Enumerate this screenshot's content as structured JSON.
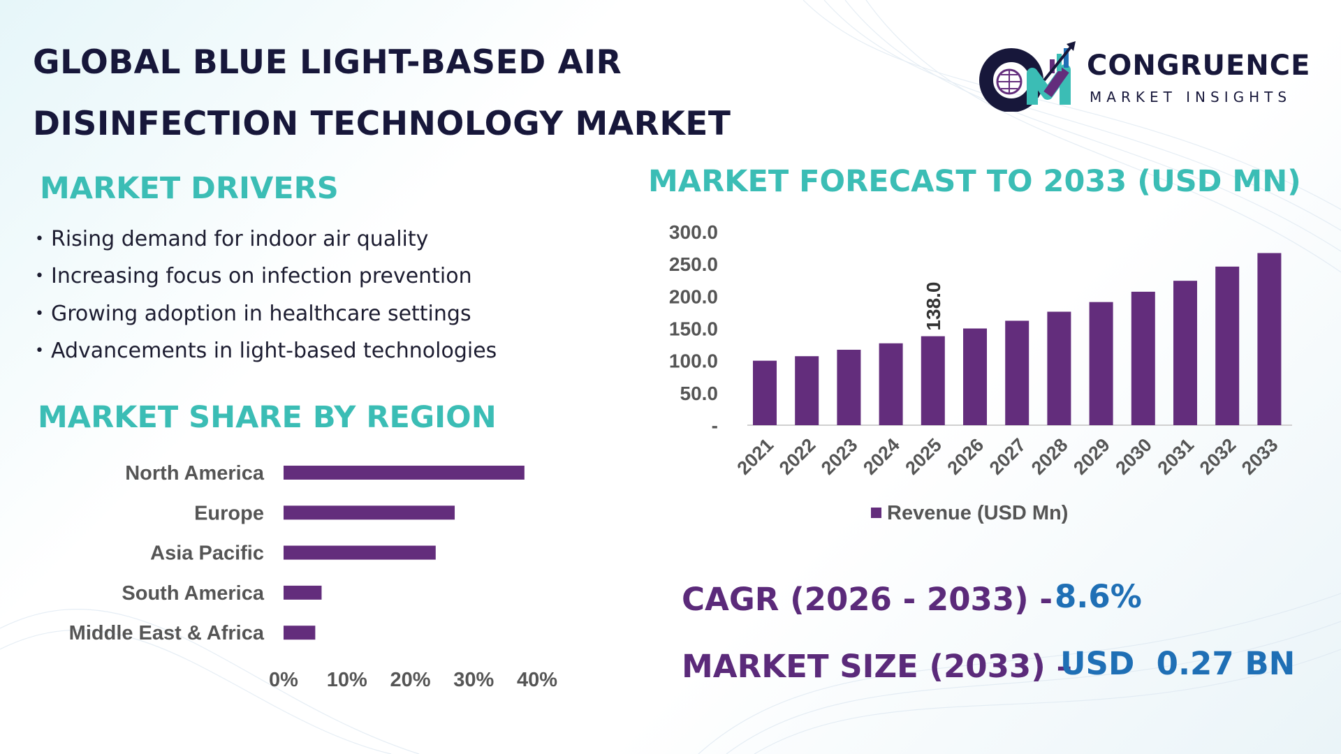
{
  "title": {
    "line1": "GLOBAL BLUE LIGHT-BASED AIR",
    "line2": "DISINFECTION TECHNOLOGY MARKET"
  },
  "logo": {
    "name": "CONGRUENCE",
    "tagline": "MARKET INSIGHTS",
    "monogram": "CM"
  },
  "drivers": {
    "heading": "MARKET DRIVERS",
    "items": [
      "Rising demand for indoor air quality",
      "Increasing focus on infection prevention",
      "Growing adoption in healthcare settings",
      "Advancements in light-based technologies"
    ]
  },
  "region": {
    "heading": "MARKET SHARE BY REGION"
  },
  "forecast": {
    "heading": "MARKET FORECAST TO 2033 (USD MN)"
  },
  "stats": {
    "cagr_label": "CAGR (2026 - 2033) -",
    "cagr_value": "8.6%",
    "size_label": "MARKET SIZE (2033) –",
    "size_value": "USD  0.27 BN"
  },
  "colors": {
    "bar": "#632d7c",
    "teal": "#3bbdb5",
    "purple_text": "#5b2a7a",
    "blue_text": "#1f6fb5"
  },
  "chart_data": [
    {
      "type": "bar",
      "orientation": "horizontal",
      "categories": [
        "North America",
        "Europe",
        "Asia Pacific",
        "South America",
        "Middle East & Africa"
      ],
      "values": [
        38,
        27,
        24,
        6,
        5
      ],
      "xlim": [
        0,
        40
      ],
      "x_ticks": [
        "0%",
        "10%",
        "20%",
        "30%",
        "40%"
      ],
      "grid": false
    },
    {
      "type": "bar",
      "categories": [
        "2021",
        "2022",
        "2023",
        "2024",
        "2025",
        "2026",
        "2027",
        "2028",
        "2029",
        "2030",
        "2031",
        "2032",
        "2033"
      ],
      "series": [
        {
          "name": "Revenue (USD Mn)",
          "values": [
            100,
            107,
            117,
            127,
            138,
            150,
            162,
            176,
            191,
            207,
            224,
            246,
            267
          ]
        }
      ],
      "ylim": [
        0,
        300
      ],
      "y_ticks": [
        "-",
        "50.0",
        "100.0",
        "150.0",
        "200.0",
        "250.0",
        "300.0"
      ],
      "data_labels": [
        {
          "category": "2025",
          "text": "138.0"
        }
      ],
      "legend": "bottom",
      "grid": false
    }
  ]
}
